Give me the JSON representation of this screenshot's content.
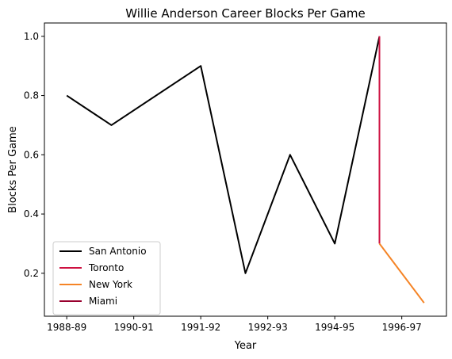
{
  "chart_data": {
    "type": "line",
    "title": "Willie Anderson  Career Blocks Per Game",
    "xlabel": "Year",
    "ylabel": "Blocks Per Game",
    "x_ticks": [
      "1988-89",
      "1990-91",
      "1991-92",
      "1992-93",
      "1994-95",
      "1996-97"
    ],
    "y_ticks": [
      "0.2",
      "0.4",
      "0.6",
      "0.8",
      "1.0"
    ],
    "xlim": [
      -0.5,
      8.5
    ],
    "ylim": [
      0.055,
      1.045
    ],
    "grid": false,
    "legend_position": "lower-left",
    "series": [
      {
        "name": "San Antonio",
        "color": "#000000",
        "points": [
          {
            "x": 0,
            "y": 0.8
          },
          {
            "x": 1,
            "y": 0.7
          },
          {
            "x": 3,
            "y": 0.9
          },
          {
            "x": 4,
            "y": 0.2
          },
          {
            "x": 5,
            "y": 0.6
          },
          {
            "x": 6,
            "y": 0.3
          },
          {
            "x": 7,
            "y": 1.0
          }
        ]
      },
      {
        "name": "Toronto",
        "color": "#CE1141",
        "points": [
          {
            "x": 7,
            "y": 1.0
          },
          {
            "x": 7,
            "y": 0.3
          }
        ]
      },
      {
        "name": "New York",
        "color": "#F58426",
        "points": [
          {
            "x": 7,
            "y": 0.3
          },
          {
            "x": 8,
            "y": 0.1
          }
        ]
      },
      {
        "name": "Miami",
        "color": "#98002E",
        "points": []
      }
    ],
    "x_tick_positions": [
      0,
      1.5,
      3,
      4.5,
      6,
      7.5
    ],
    "y_tick_values": [
      0.2,
      0.4,
      0.6,
      0.8,
      1.0
    ]
  }
}
